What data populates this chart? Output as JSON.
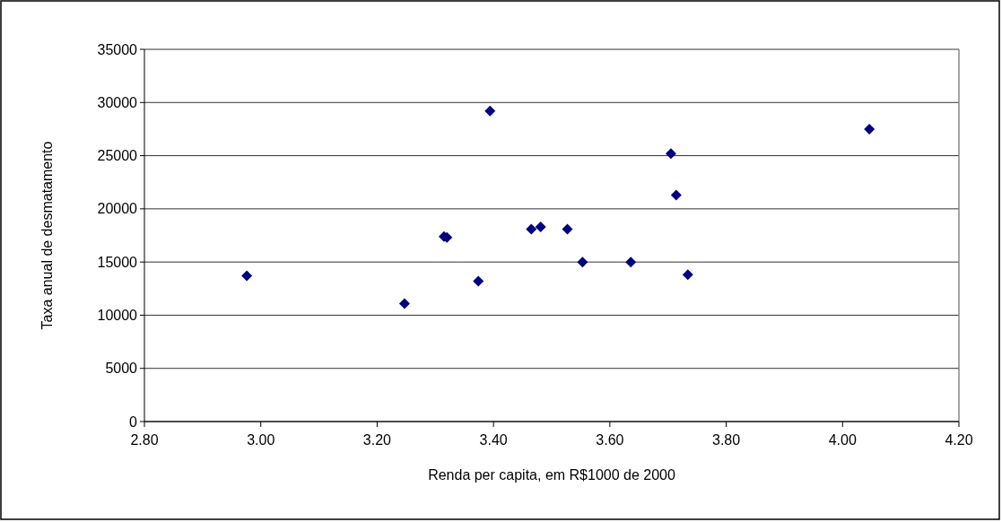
{
  "chart_data": {
    "type": "scatter",
    "xlabel": "Renda per capita, em R$1000 de 2000",
    "ylabel": "Taxa anual de desmatamento",
    "x": [
      2.976,
      3.247,
      3.315,
      3.32,
      3.374,
      3.394,
      3.465,
      3.481,
      3.527,
      3.553,
      3.636,
      3.705,
      3.714,
      3.734,
      4.046
    ],
    "series": [
      {
        "color": "#000080",
        "values": [
          13700,
          11100,
          17400,
          17300,
          13200,
          29200,
          18100,
          18300,
          18100,
          15000,
          15000,
          25200,
          21300,
          13800,
          27500
        ]
      }
    ],
    "xlim": [
      2.8,
      4.2
    ],
    "xticks": [
      {
        "value": 2.8,
        "label": "2.80"
      },
      {
        "value": 3,
        "label": "3.00"
      },
      {
        "value": 3.2,
        "label": "3.20"
      },
      {
        "value": 3.4,
        "label": "3.40"
      },
      {
        "value": 3.6,
        "label": "3.60"
      },
      {
        "value": 3.8,
        "label": "3.80"
      },
      {
        "value": 4,
        "label": "4.00"
      },
      {
        "value": 4.2,
        "label": "4.20"
      }
    ],
    "ylim": [
      0,
      35000
    ],
    "yticks": [
      0,
      5000,
      10000,
      15000,
      20000,
      25000,
      30000,
      35000
    ],
    "grid": "y",
    "marker": "diamond"
  }
}
